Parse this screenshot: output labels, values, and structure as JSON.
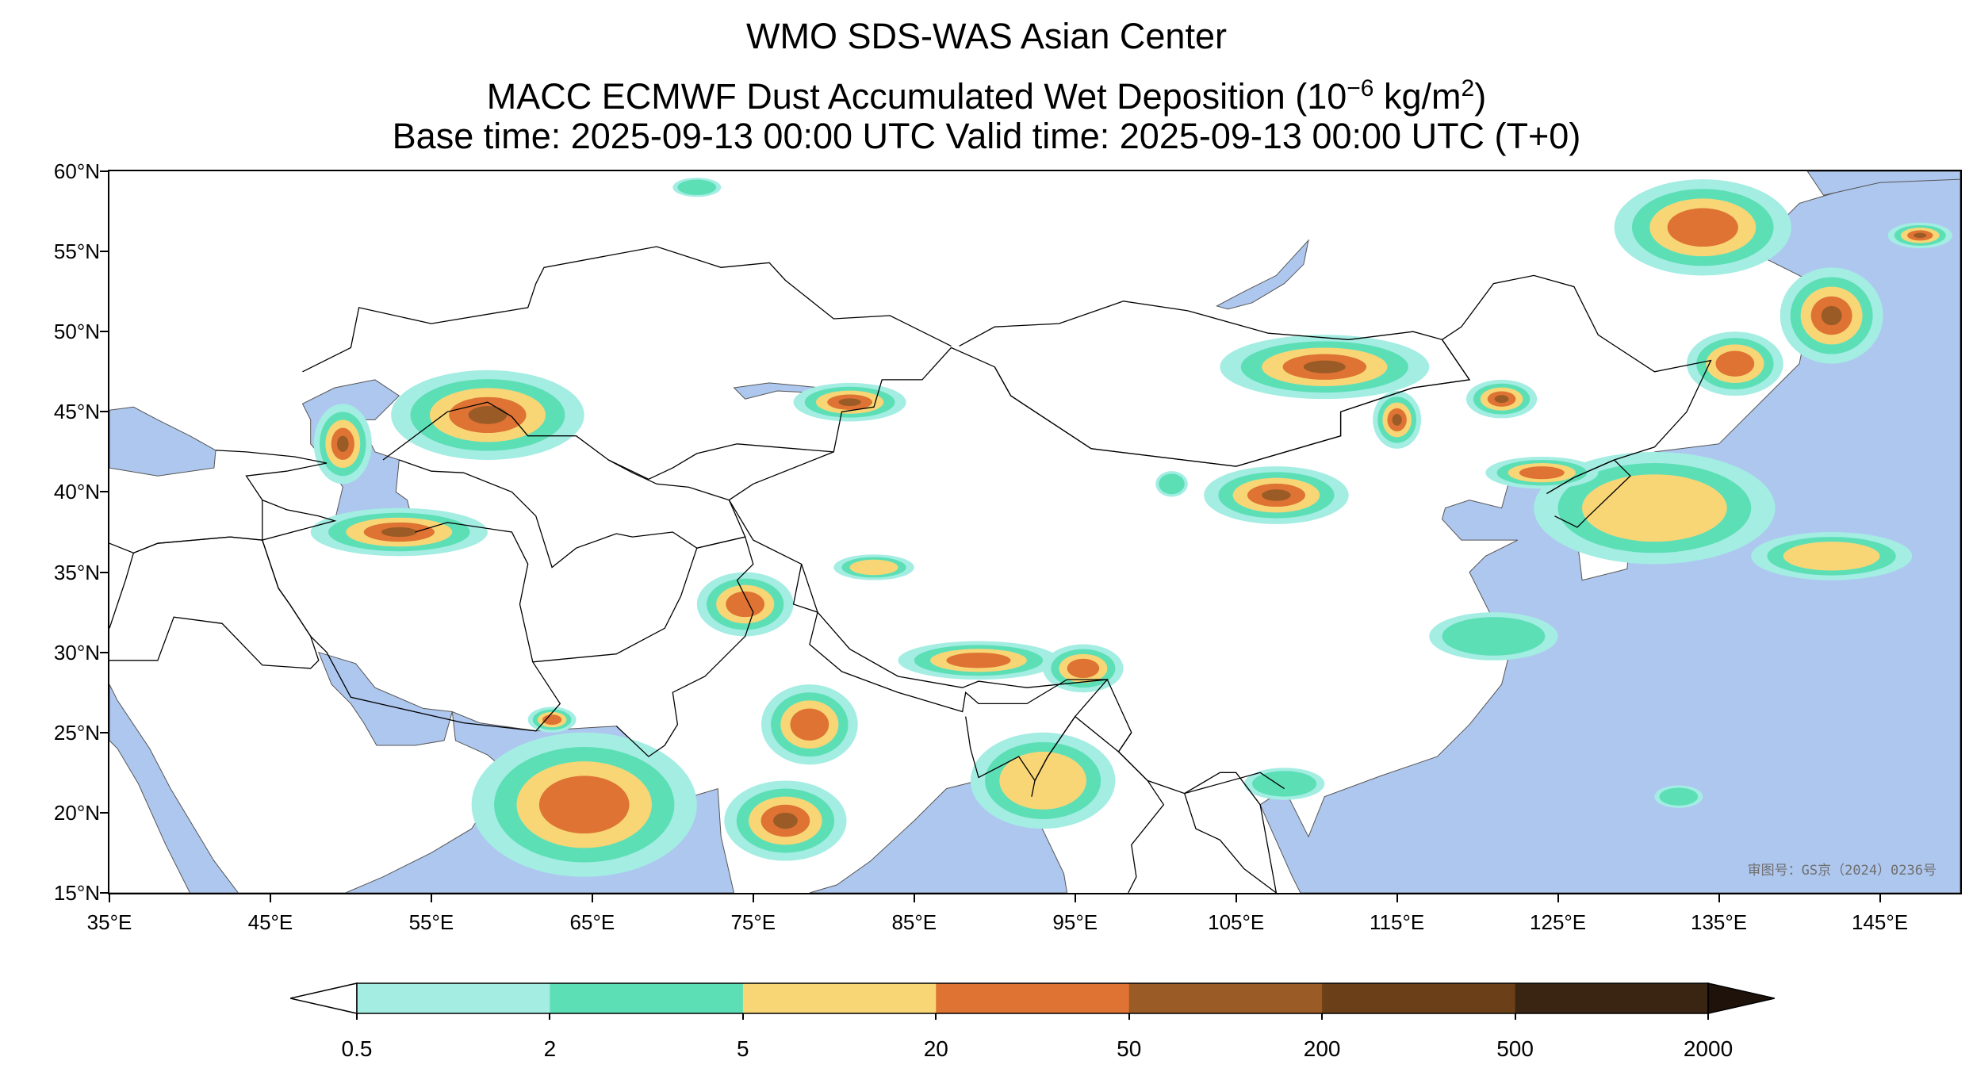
{
  "title": {
    "line1": "WMO SDS-WAS Asian Center",
    "line2_prefix": "MACC ECMWF Dust Accumulated Wet Deposition (10",
    "line2_exp": "−6",
    "line2_mid": " kg/m",
    "line2_exp2": "2",
    "line2_suffix": ")",
    "line3": "Base time: 2025-09-13 00:00 UTC Valid time: 2025-09-13 00:00 UTC (T+0)"
  },
  "map": {
    "lon_range": [
      35,
      150
    ],
    "lat_range": [
      15,
      60
    ],
    "ocean_color": "#aec7ef",
    "land_color": "#ffffff",
    "watermark": "审图号：GS京（2024）0236号"
  },
  "axes": {
    "lat_ticks": [
      {
        "value": 60,
        "label": "60°N"
      },
      {
        "value": 55,
        "label": "55°N"
      },
      {
        "value": 50,
        "label": "50°N"
      },
      {
        "value": 45,
        "label": "45°N"
      },
      {
        "value": 40,
        "label": "40°N"
      },
      {
        "value": 35,
        "label": "35°N"
      },
      {
        "value": 30,
        "label": "30°N"
      },
      {
        "value": 25,
        "label": "25°N"
      },
      {
        "value": 20,
        "label": "20°N"
      },
      {
        "value": 15,
        "label": "15°N"
      }
    ],
    "lon_ticks": [
      {
        "value": 35,
        "label": "35°E"
      },
      {
        "value": 45,
        "label": "45°E"
      },
      {
        "value": 55,
        "label": "55°E"
      },
      {
        "value": 65,
        "label": "65°E"
      },
      {
        "value": 75,
        "label": "75°E"
      },
      {
        "value": 85,
        "label": "85°E"
      },
      {
        "value": 95,
        "label": "95°E"
      },
      {
        "value": 105,
        "label": "105°E"
      },
      {
        "value": 115,
        "label": "115°E"
      },
      {
        "value": 125,
        "label": "125°E"
      },
      {
        "value": 135,
        "label": "135°E"
      },
      {
        "value": 145,
        "label": "145°E"
      }
    ]
  },
  "colorbar": {
    "levels": [
      "0.5",
      "2",
      "5",
      "20",
      "50",
      "200",
      "500",
      "2000"
    ],
    "colors": [
      "#a3ede3",
      "#5ddfb6",
      "#f8d676",
      "#de7333",
      "#9a5b27",
      "#6b4019",
      "#3a2412"
    ],
    "under_color": "#ffffff",
    "over_color": "#1e120a"
  },
  "deposition_areas": [
    {
      "name": "mongolia-central",
      "lon": 110.5,
      "lat": 47.8,
      "rlon": 6.5,
      "rlat": 2.0,
      "level": 4
    },
    {
      "name": "inner-mongolia-east",
      "lon": 115.0,
      "lat": 44.5,
      "rlon": 1.5,
      "rlat": 1.8,
      "level": 4
    },
    {
      "name": "northeast-china",
      "lon": 121.5,
      "lat": 45.8,
      "rlon": 2.2,
      "rlat": 1.2,
      "level": 4
    },
    {
      "name": "ordos-loess",
      "lon": 107.5,
      "lat": 39.8,
      "rlon": 4.5,
      "rlat": 1.8,
      "level": 4
    },
    {
      "name": "aral-kazakhstan",
      "lon": 58.5,
      "lat": 44.8,
      "rlon": 6.0,
      "rlat": 2.8,
      "level": 4
    },
    {
      "name": "caspian-east",
      "lon": 49.5,
      "lat": 43.0,
      "rlon": 1.8,
      "rlat": 2.5,
      "level": 4
    },
    {
      "name": "turkmenistan-iran",
      "lon": 53.0,
      "lat": 37.5,
      "rlon": 5.5,
      "rlat": 1.5,
      "level": 4
    },
    {
      "name": "balkhash",
      "lon": 81.0,
      "lat": 45.6,
      "rlon": 3.5,
      "rlat": 1.2,
      "level": 4
    },
    {
      "name": "tarim-south",
      "lon": 82.5,
      "lat": 35.3,
      "rlon": 2.5,
      "rlat": 0.8,
      "level": 2
    },
    {
      "name": "arabian-sea-west",
      "lon": 64.5,
      "lat": 20.5,
      "rlon": 7.0,
      "rlat": 4.5,
      "level": 3
    },
    {
      "name": "arabian-sea-east",
      "lon": 77.0,
      "lat": 19.5,
      "rlon": 3.8,
      "rlat": 2.5,
      "level": 4
    },
    {
      "name": "kashmir",
      "lon": 74.5,
      "lat": 33.0,
      "rlon": 3.0,
      "rlat": 2.0,
      "level": 3
    },
    {
      "name": "nepal-gangetic",
      "lon": 89.0,
      "lat": 29.5,
      "rlon": 5.0,
      "rlat": 1.2,
      "level": 3
    },
    {
      "name": "india-central",
      "lon": 78.5,
      "lat": 25.5,
      "rlon": 3.0,
      "rlat": 2.5,
      "level": 3
    },
    {
      "name": "tibet-east",
      "lon": 95.5,
      "lat": 29.0,
      "rlon": 2.5,
      "rlat": 1.5,
      "level": 3
    },
    {
      "name": "bay-of-bengal",
      "lon": 93.0,
      "lat": 22.0,
      "rlon": 4.5,
      "rlat": 3.0,
      "level": 2
    },
    {
      "name": "sakhalin",
      "lon": 142.0,
      "lat": 51.0,
      "rlon": 3.2,
      "rlat": 3.0,
      "level": 4
    },
    {
      "name": "okhotsk-north",
      "lon": 134.0,
      "lat": 56.5,
      "rlon": 5.5,
      "rlat": 3.0,
      "level": 3
    },
    {
      "name": "kamchatka-west",
      "lon": 147.5,
      "lat": 56.0,
      "rlon": 2.0,
      "rlat": 0.8,
      "level": 4
    },
    {
      "name": "amur",
      "lon": 136.0,
      "lat": 48.0,
      "rlon": 3.0,
      "rlat": 2.0,
      "level": 3
    },
    {
      "name": "korea-japan-sea",
      "lon": 131.0,
      "lat": 39.0,
      "rlon": 7.5,
      "rlat": 3.5,
      "level": 2
    },
    {
      "name": "liaoning",
      "lon": 124.0,
      "lat": 41.2,
      "rlon": 3.5,
      "rlat": 1.0,
      "level": 3
    },
    {
      "name": "east-china-sea",
      "lon": 121.0,
      "lat": 31.0,
      "rlon": 4.0,
      "rlat": 1.5,
      "level": 1
    },
    {
      "name": "philippine-sea",
      "lon": 142.0,
      "lat": 36.0,
      "rlon": 5.0,
      "rlat": 1.5,
      "level": 2
    },
    {
      "name": "south-china-sea",
      "lon": 132.5,
      "lat": 21.0,
      "rlon": 1.5,
      "rlat": 0.7,
      "level": 1
    },
    {
      "name": "hainan-gulf",
      "lon": 108.0,
      "lat": 21.8,
      "rlon": 2.5,
      "rlat": 1.0,
      "level": 1
    },
    {
      "name": "gulf-oman",
      "lon": 62.5,
      "lat": 25.8,
      "rlon": 1.5,
      "rlat": 0.8,
      "level": 3
    },
    {
      "name": "hexi-corridor",
      "lon": 101.0,
      "lat": 40.5,
      "rlon": 1.0,
      "rlat": 0.8,
      "level": 1
    },
    {
      "name": "siberia-north",
      "lon": 71.5,
      "lat": 59.0,
      "rlon": 1.5,
      "rlat": 0.6,
      "level": 1
    }
  ]
}
